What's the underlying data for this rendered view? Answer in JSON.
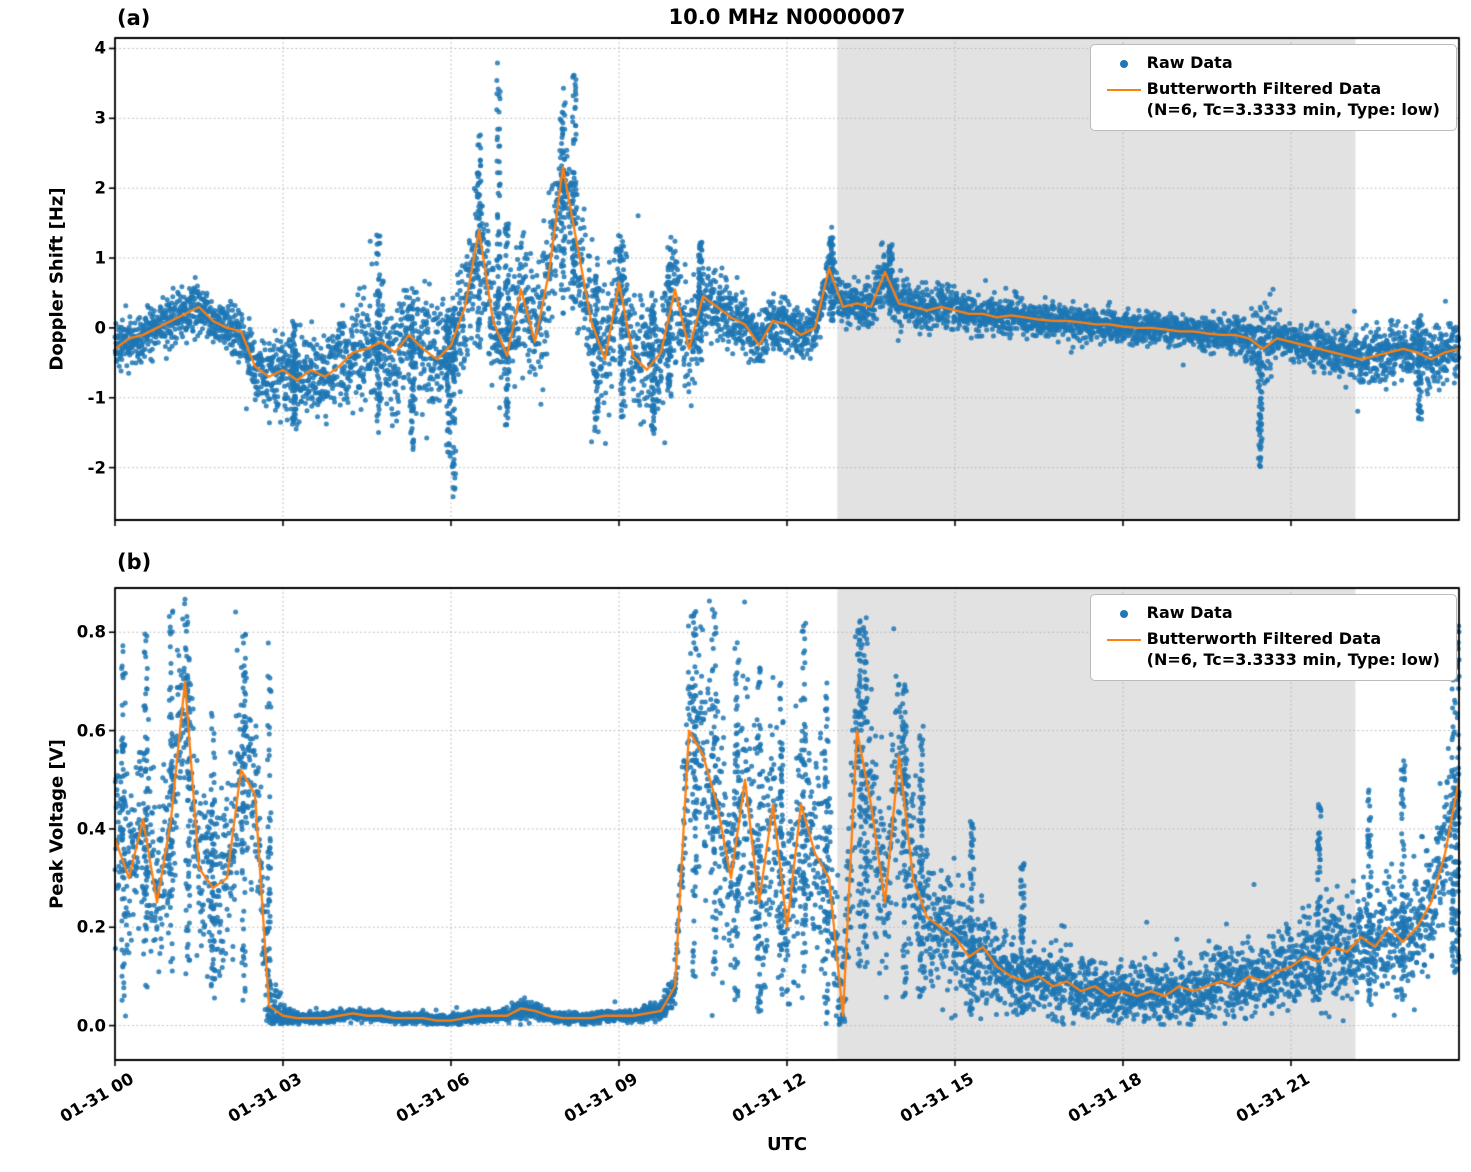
{
  "figure": {
    "title": "10.0 MHz N0000007",
    "xlabel": "UTC",
    "colors": {
      "raw": "#1f77b4",
      "filtered": "#ff7f0e",
      "shade": "#e2e2e2",
      "grid": "#b3b3b3",
      "spine": "#000000",
      "background": "#ffffff"
    },
    "legend": {
      "raw_label": "Raw Data",
      "filtered_label": "Butterworth Filtered Data",
      "filtered_sublabel": "(N=6, Tc=3.3333 min, Type: low)"
    }
  },
  "x_axis": {
    "label": "UTC",
    "range_hours": [
      0,
      24
    ],
    "tick_hours": [
      0,
      3,
      6,
      9,
      12,
      15,
      18,
      21
    ],
    "tick_labels": [
      "01-31 00",
      "01-31 03",
      "01-31 06",
      "01-31 09",
      "01-31 12",
      "01-31 15",
      "01-31 18",
      "01-31 21"
    ],
    "shaded_region_hours": [
      12.9,
      22.15
    ]
  },
  "chart_data": [
    {
      "type": "scatter+line",
      "panel_label": "(a)",
      "ylabel": "Doppler Shift [Hz]",
      "ylim": [
        -2.75,
        4.15
      ],
      "yticks": [
        -2,
        -1,
        0,
        1,
        2,
        3,
        4
      ],
      "ytick_labels": [
        "-2",
        "-1",
        "0",
        "1",
        "2",
        "3",
        "4"
      ],
      "raw_point_count": 6000,
      "raw_clip": [
        -2.5,
        3.82
      ],
      "x_hours": [
        0,
        0.25,
        0.5,
        0.75,
        1,
        1.25,
        1.5,
        1.75,
        2,
        2.25,
        2.5,
        2.75,
        3,
        3.25,
        3.5,
        3.75,
        4,
        4.25,
        4.5,
        4.75,
        5,
        5.25,
        5.5,
        5.75,
        6,
        6.25,
        6.5,
        6.75,
        7,
        7.25,
        7.5,
        7.75,
        8,
        8.25,
        8.5,
        8.75,
        9,
        9.25,
        9.5,
        9.75,
        10,
        10.25,
        10.5,
        10.75,
        11,
        11.25,
        11.5,
        11.75,
        12,
        12.25,
        12.5,
        12.75,
        13,
        13.25,
        13.5,
        13.75,
        14,
        14.25,
        14.5,
        14.75,
        15,
        15.25,
        15.5,
        15.75,
        16,
        16.25,
        16.5,
        16.75,
        17,
        17.25,
        17.5,
        17.75,
        18,
        18.25,
        18.5,
        18.75,
        19,
        19.25,
        19.5,
        19.75,
        20,
        20.25,
        20.5,
        20.75,
        21,
        21.25,
        21.5,
        21.75,
        22,
        22.25,
        22.5,
        22.75,
        23,
        23.25,
        23.5,
        23.75,
        24
      ],
      "filtered_y": [
        -0.3,
        -0.15,
        -0.1,
        0.0,
        0.1,
        0.2,
        0.3,
        0.1,
        0.0,
        -0.05,
        -0.55,
        -0.7,
        -0.6,
        -0.75,
        -0.6,
        -0.7,
        -0.55,
        -0.35,
        -0.3,
        -0.2,
        -0.35,
        -0.1,
        -0.3,
        -0.45,
        -0.25,
        0.3,
        1.4,
        0.1,
        -0.4,
        0.55,
        -0.2,
        0.8,
        2.3,
        1.2,
        0.1,
        -0.45,
        0.65,
        -0.4,
        -0.6,
        -0.35,
        0.55,
        -0.3,
        0.45,
        0.3,
        0.15,
        0.05,
        -0.25,
        0.1,
        0.05,
        -0.1,
        0.0,
        0.85,
        0.3,
        0.35,
        0.3,
        0.8,
        0.35,
        0.3,
        0.25,
        0.3,
        0.25,
        0.2,
        0.2,
        0.15,
        0.18,
        0.15,
        0.12,
        0.1,
        0.1,
        0.08,
        0.05,
        0.05,
        0.02,
        0.0,
        0.0,
        -0.02,
        -0.05,
        -0.05,
        -0.08,
        -0.1,
        -0.1,
        -0.15,
        -0.3,
        -0.15,
        -0.2,
        -0.25,
        -0.3,
        -0.35,
        -0.4,
        -0.45,
        -0.4,
        -0.35,
        -0.3,
        -0.35,
        -0.45,
        -0.35,
        -0.3
      ],
      "raw_spread": [
        0.22,
        0.22,
        0.22,
        0.22,
        0.25,
        0.25,
        0.25,
        0.22,
        0.22,
        0.25,
        0.3,
        0.35,
        0.4,
        0.4,
        0.4,
        0.4,
        0.45,
        0.5,
        0.5,
        0.5,
        0.55,
        0.55,
        0.6,
        0.55,
        0.55,
        0.6,
        0.65,
        0.65,
        0.6,
        0.6,
        0.65,
        0.65,
        0.7,
        0.7,
        0.65,
        0.6,
        0.6,
        0.6,
        0.6,
        0.55,
        0.55,
        0.5,
        0.4,
        0.35,
        0.3,
        0.3,
        0.3,
        0.28,
        0.28,
        0.25,
        0.25,
        0.25,
        0.22,
        0.25,
        0.25,
        0.28,
        0.25,
        0.22,
        0.22,
        0.2,
        0.2,
        0.2,
        0.18,
        0.18,
        0.18,
        0.18,
        0.16,
        0.16,
        0.16,
        0.15,
        0.15,
        0.15,
        0.15,
        0.15,
        0.15,
        0.15,
        0.15,
        0.15,
        0.15,
        0.15,
        0.16,
        0.2,
        0.45,
        0.18,
        0.18,
        0.18,
        0.2,
        0.22,
        0.25,
        0.28,
        0.28,
        0.28,
        0.25,
        0.28,
        0.3,
        0.28,
        0.28
      ],
      "raw_bursts": [
        {
          "t": 3.2,
          "lo": -1.45,
          "hi": 0.1
        },
        {
          "t": 4.7,
          "lo": -1.5,
          "hi": 1.35
        },
        {
          "t": 5.3,
          "lo": -1.75,
          "hi": 0.4
        },
        {
          "t": 5.95,
          "lo": -1.9,
          "hi": 0.2
        },
        {
          "t": 6.05,
          "lo": -2.45,
          "hi": 0.3
        },
        {
          "t": 6.5,
          "lo": -0.5,
          "hi": 2.9
        },
        {
          "t": 6.85,
          "lo": -0.3,
          "hi": 3.8
        },
        {
          "t": 7.0,
          "lo": -1.4,
          "hi": 1.5
        },
        {
          "t": 8.0,
          "lo": 0.2,
          "hi": 3.1
        },
        {
          "t": 8.2,
          "lo": 0.1,
          "hi": 3.65
        },
        {
          "t": 8.6,
          "lo": -1.5,
          "hi": 1.0
        },
        {
          "t": 9.05,
          "lo": -1.3,
          "hi": 1.35
        },
        {
          "t": 9.6,
          "lo": -1.6,
          "hi": 0.5
        },
        {
          "t": 9.9,
          "lo": -1.0,
          "hi": 1.3
        },
        {
          "t": 10.45,
          "lo": -0.5,
          "hi": 1.25
        },
        {
          "t": 12.8,
          "lo": 0.1,
          "hi": 1.3
        },
        {
          "t": 13.85,
          "lo": 0.2,
          "hi": 1.2
        },
        {
          "t": 20.45,
          "lo": -2.0,
          "hi": 0.1
        },
        {
          "t": 23.3,
          "lo": -1.35,
          "hi": 0.2
        }
      ]
    },
    {
      "type": "scatter+line",
      "panel_label": "(b)",
      "ylabel": "Peak Voltage [V]",
      "ylim": [
        -0.07,
        0.89
      ],
      "yticks": [
        0.0,
        0.2,
        0.4,
        0.6,
        0.8
      ],
      "ytick_labels": [
        "0.0",
        "0.2",
        "0.4",
        "0.6",
        "0.8"
      ],
      "raw_point_count": 6000,
      "raw_clip": [
        0.002,
        0.872
      ],
      "x_hours": [
        0,
        0.25,
        0.5,
        0.75,
        1,
        1.25,
        1.5,
        1.75,
        2,
        2.25,
        2.5,
        2.75,
        3,
        3.25,
        3.5,
        3.75,
        4,
        4.25,
        4.5,
        4.75,
        5,
        5.25,
        5.5,
        5.75,
        6,
        6.25,
        6.5,
        6.75,
        7,
        7.25,
        7.5,
        7.75,
        8,
        8.25,
        8.5,
        8.75,
        9,
        9.25,
        9.5,
        9.75,
        10,
        10.25,
        10.5,
        10.75,
        11,
        11.25,
        11.5,
        11.75,
        12,
        12.25,
        12.5,
        12.75,
        13,
        13.25,
        13.5,
        13.75,
        14,
        14.25,
        14.5,
        14.75,
        15,
        15.25,
        15.5,
        15.75,
        16,
        16.25,
        16.5,
        16.75,
        17,
        17.25,
        17.5,
        17.75,
        18,
        18.25,
        18.5,
        18.75,
        19,
        19.25,
        19.5,
        19.75,
        20,
        20.25,
        20.5,
        20.75,
        21,
        21.25,
        21.5,
        21.75,
        22,
        22.25,
        22.5,
        22.75,
        23,
        23.25,
        23.5,
        23.75,
        24
      ],
      "filtered_y": [
        0.38,
        0.3,
        0.42,
        0.25,
        0.42,
        0.7,
        0.32,
        0.28,
        0.3,
        0.52,
        0.47,
        0.04,
        0.02,
        0.015,
        0.015,
        0.015,
        0.02,
        0.025,
        0.02,
        0.02,
        0.015,
        0.015,
        0.015,
        0.01,
        0.01,
        0.015,
        0.02,
        0.02,
        0.02,
        0.035,
        0.03,
        0.02,
        0.015,
        0.015,
        0.015,
        0.02,
        0.02,
        0.02,
        0.025,
        0.03,
        0.08,
        0.6,
        0.55,
        0.45,
        0.3,
        0.5,
        0.25,
        0.45,
        0.2,
        0.45,
        0.35,
        0.3,
        0.02,
        0.6,
        0.45,
        0.25,
        0.55,
        0.3,
        0.22,
        0.2,
        0.18,
        0.14,
        0.16,
        0.12,
        0.1,
        0.09,
        0.1,
        0.08,
        0.09,
        0.07,
        0.08,
        0.06,
        0.07,
        0.06,
        0.07,
        0.06,
        0.08,
        0.07,
        0.08,
        0.09,
        0.08,
        0.1,
        0.09,
        0.11,
        0.12,
        0.14,
        0.13,
        0.16,
        0.15,
        0.18,
        0.16,
        0.2,
        0.17,
        0.2,
        0.25,
        0.35,
        0.5
      ],
      "raw_spread": [
        0.13,
        0.13,
        0.13,
        0.13,
        0.13,
        0.14,
        0.12,
        0.12,
        0.12,
        0.14,
        0.13,
        0.06,
        0.012,
        0.008,
        0.008,
        0.008,
        0.008,
        0.008,
        0.008,
        0.008,
        0.008,
        0.008,
        0.008,
        0.008,
        0.008,
        0.008,
        0.008,
        0.008,
        0.008,
        0.012,
        0.012,
        0.008,
        0.008,
        0.008,
        0.008,
        0.008,
        0.008,
        0.008,
        0.01,
        0.012,
        0.03,
        0.15,
        0.16,
        0.16,
        0.15,
        0.16,
        0.15,
        0.16,
        0.14,
        0.16,
        0.15,
        0.14,
        0.1,
        0.16,
        0.15,
        0.13,
        0.15,
        0.12,
        0.1,
        0.09,
        0.08,
        0.07,
        0.07,
        0.06,
        0.055,
        0.05,
        0.05,
        0.045,
        0.05,
        0.04,
        0.045,
        0.04,
        0.04,
        0.04,
        0.04,
        0.04,
        0.045,
        0.04,
        0.045,
        0.05,
        0.045,
        0.05,
        0.05,
        0.055,
        0.06,
        0.065,
        0.06,
        0.07,
        0.065,
        0.075,
        0.07,
        0.08,
        0.07,
        0.08,
        0.09,
        0.11,
        0.13
      ],
      "raw_bursts": [
        {
          "t": 0.15,
          "lo": 0.05,
          "hi": 0.78
        },
        {
          "t": 0.55,
          "lo": 0.05,
          "hi": 0.8
        },
        {
          "t": 1.0,
          "lo": 0.1,
          "hi": 0.86
        },
        {
          "t": 1.3,
          "lo": 0.1,
          "hi": 0.8
        },
        {
          "t": 1.75,
          "lo": 0.05,
          "hi": 0.65
        },
        {
          "t": 2.3,
          "lo": 0.05,
          "hi": 0.8
        },
        {
          "t": 2.75,
          "lo": 0.05,
          "hi": 0.78
        },
        {
          "t": 10.35,
          "lo": 0.1,
          "hi": 0.87
        },
        {
          "t": 10.7,
          "lo": 0.1,
          "hi": 0.85
        },
        {
          "t": 11.1,
          "lo": 0.05,
          "hi": 0.78
        },
        {
          "t": 11.5,
          "lo": 0.02,
          "hi": 0.75
        },
        {
          "t": 11.9,
          "lo": 0.05,
          "hi": 0.7
        },
        {
          "t": 12.3,
          "lo": 0.05,
          "hi": 0.82
        },
        {
          "t": 12.7,
          "lo": 0.02,
          "hi": 0.72
        },
        {
          "t": 13.3,
          "lo": 0.1,
          "hi": 0.86
        },
        {
          "t": 13.4,
          "lo": 0.1,
          "hi": 0.84
        },
        {
          "t": 14.1,
          "lo": 0.05,
          "hi": 0.7
        },
        {
          "t": 14.4,
          "lo": 0.05,
          "hi": 0.62
        },
        {
          "t": 15.3,
          "lo": 0.02,
          "hi": 0.42
        },
        {
          "t": 16.2,
          "lo": 0.02,
          "hi": 0.35
        },
        {
          "t": 21.5,
          "lo": 0.05,
          "hi": 0.45
        },
        {
          "t": 22.4,
          "lo": 0.05,
          "hi": 0.48
        },
        {
          "t": 23.0,
          "lo": 0.05,
          "hi": 0.55
        },
        {
          "t": 23.9,
          "lo": 0.1,
          "hi": 0.85
        },
        {
          "t": 23.97,
          "lo": 0.1,
          "hi": 0.82
        }
      ]
    }
  ]
}
